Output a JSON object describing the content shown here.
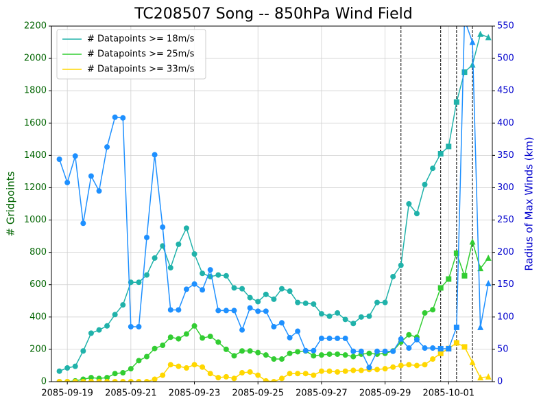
{
  "chart_data": {
    "type": "line",
    "title": "TC208507 Song -- 850hPa Wind Field",
    "y_label": "# Gridpoints",
    "y2_label": "Radius of Max Winds (km)",
    "x": [
      "2085-09-18 18:00",
      "2085-09-19 00:00",
      "2085-09-19 06:00",
      "2085-09-19 12:00",
      "2085-09-19 18:00",
      "2085-09-20 00:00",
      "2085-09-20 06:00",
      "2085-09-20 12:00",
      "2085-09-20 18:00",
      "2085-09-21 00:00",
      "2085-09-21 06:00",
      "2085-09-21 12:00",
      "2085-09-21 18:00",
      "2085-09-22 00:00",
      "2085-09-22 06:00",
      "2085-09-22 12:00",
      "2085-09-22 18:00",
      "2085-09-23 00:00",
      "2085-09-23 06:00",
      "2085-09-23 12:00",
      "2085-09-23 18:00",
      "2085-09-24 00:00",
      "2085-09-24 06:00",
      "2085-09-24 12:00",
      "2085-09-24 18:00",
      "2085-09-25 00:00",
      "2085-09-25 06:00",
      "2085-09-25 12:00",
      "2085-09-25 18:00",
      "2085-09-26 00:00",
      "2085-09-26 06:00",
      "2085-09-26 12:00",
      "2085-09-26 18:00",
      "2085-09-27 00:00",
      "2085-09-27 06:00",
      "2085-09-27 12:00",
      "2085-09-27 18:00",
      "2085-09-28 00:00",
      "2085-09-28 06:00",
      "2085-09-28 12:00",
      "2085-09-28 18:00",
      "2085-09-29 00:00",
      "2085-09-29 06:00",
      "2085-09-29 12:00",
      "2085-09-29 18:00",
      "2085-09-30 00:00",
      "2085-09-30 06:00",
      "2085-09-30 12:00",
      "2085-09-30 18:00",
      "2085-10-01 00:00",
      "2085-10-01 06:00",
      "2085-10-01 12:00",
      "2085-10-01 18:00",
      "2085-10-02 00:00",
      "2085-10-02 06:00"
    ],
    "series": [
      {
        "name": "# Datapoints >= 18m/s",
        "color": "#20b2aa",
        "values": [
          65,
          85,
          95,
          190,
          300,
          320,
          345,
          415,
          475,
          615,
          615,
          660,
          765,
          840,
          705,
          850,
          950,
          790,
          670,
          650,
          660,
          655,
          580,
          575,
          520,
          495,
          540,
          510,
          575,
          560,
          490,
          485,
          480,
          420,
          405,
          425,
          385,
          360,
          400,
          405,
          490,
          490,
          650,
          720,
          1100,
          1040,
          1220,
          1320,
          1410,
          1455,
          1730,
          1915,
          1960,
          2150,
          2130
        ]
      },
      {
        "name": "# Datapoints >= 25m/s",
        "color": "#32cd32",
        "values": [
          0,
          0,
          5,
          15,
          25,
          20,
          25,
          50,
          55,
          80,
          130,
          155,
          205,
          225,
          275,
          265,
          295,
          345,
          270,
          280,
          245,
          200,
          160,
          190,
          190,
          180,
          165,
          140,
          140,
          175,
          185,
          190,
          160,
          165,
          170,
          170,
          165,
          155,
          170,
          175,
          170,
          175,
          190,
          245,
          290,
          275,
          425,
          445,
          580,
          635,
          795,
          655,
          865,
          700,
          765
        ]
      },
      {
        "name": "# Datapoints >= 33m/s",
        "color": "#ffd700",
        "values": [
          0,
          0,
          0,
          0,
          0,
          0,
          0,
          0,
          0,
          0,
          0,
          0,
          15,
          40,
          105,
          95,
          85,
          105,
          90,
          50,
          25,
          30,
          20,
          55,
          60,
          40,
          5,
          0,
          20,
          50,
          50,
          50,
          40,
          65,
          65,
          60,
          65,
          70,
          70,
          75,
          75,
          80,
          90,
          100,
          105,
          100,
          105,
          140,
          175,
          205,
          240,
          215,
          120,
          25,
          30
        ]
      },
      {
        "color": "#1e90ff",
        "axis": "y2",
        "values": [
          344,
          308,
          349,
          245,
          318,
          295,
          363,
          409,
          408,
          85,
          85,
          223,
          351,
          239,
          111,
          111,
          143,
          151,
          142,
          173,
          110,
          110,
          110,
          80,
          114,
          109,
          109,
          85,
          91,
          68,
          78,
          48,
          48,
          67,
          67,
          67,
          67,
          47,
          47,
          22,
          47,
          47,
          47,
          66,
          52,
          65,
          52,
          52,
          51,
          51,
          84,
          560,
          525,
          84,
          152
        ]
      }
    ],
    "vlines": [
      "2085-09-29 12:00",
      "2085-09-30 18:00",
      "2085-10-01 06:00",
      "2085-10-01 18:00"
    ],
    "markers": [
      "circle",
      "square",
      "triangle"
    ],
    "xlim": [
      "2085-09-18 12:00",
      "2085-10-02 09:00"
    ],
    "xticks": [
      "2085-09-19",
      "2085-09-21",
      "2085-09-23",
      "2085-09-25",
      "2085-09-27",
      "2085-09-29",
      "2085-10-01"
    ],
    "ylim": [
      0,
      2200
    ],
    "yticks": [
      0,
      200,
      400,
      600,
      800,
      1000,
      1200,
      1400,
      1600,
      1800,
      2000,
      2200
    ],
    "y2lim": [
      0,
      550
    ],
    "y2ticks": [
      0,
      50,
      100,
      150,
      200,
      250,
      300,
      350,
      400,
      450,
      500,
      550
    ],
    "y_label_color": "#006400",
    "y2_label_color": "#0000cd",
    "grid": true,
    "legend": "upper left"
  }
}
